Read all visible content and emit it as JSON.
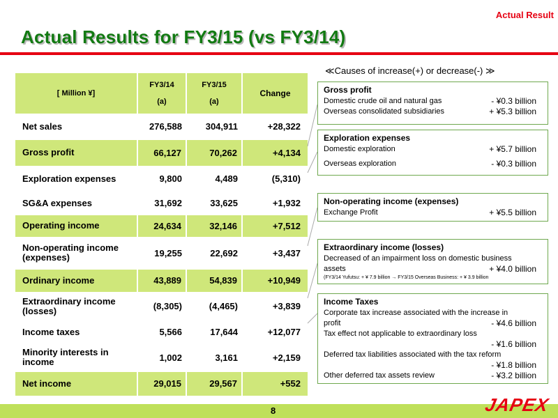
{
  "header": {
    "tag": "Actual Result",
    "title": "Actual Results for FY3/15 (vs FY3/14)"
  },
  "table": {
    "unit_label": "[ Million ¥]",
    "col1": "FY3/14",
    "col1_sub": "(a)",
    "col2": "FY3/15",
    "col2_sub": "(a)",
    "col3": "Change",
    "rows": [
      {
        "label": "Net sales",
        "fy14": "276,588",
        "fy15": "304,911",
        "change": "+28,322"
      },
      {
        "label": "Gross profit",
        "fy14": "66,127",
        "fy15": "70,262",
        "change": "+4,134"
      },
      {
        "label": "Exploration expenses",
        "fy14": "9,800",
        "fy15": "4,489",
        "change": "(5,310)"
      },
      {
        "label": "SG&A expenses",
        "fy14": "31,692",
        "fy15": "33,625",
        "change": "+1,932"
      },
      {
        "label": "Operating income",
        "fy14": "24,634",
        "fy15": "32,146",
        "change": "+7,512"
      },
      {
        "label": "Non-operating income (expenses)",
        "fy14": "19,255",
        "fy15": "22,692",
        "change": "+3,437"
      },
      {
        "label": "Ordinary income",
        "fy14": "43,889",
        "fy15": "54,839",
        "change": "+10,949"
      },
      {
        "label": "Extraordinary income (losses)",
        "fy14": "(8,305)",
        "fy15": "(4,465)",
        "change": "+3,839"
      },
      {
        "label": "Income taxes",
        "fy14": "5,566",
        "fy15": "17,644",
        "change": "+12,077"
      },
      {
        "label": "Minority interests in income",
        "fy14": "1,002",
        "fy15": "3,161",
        "change": "+2,159"
      },
      {
        "label": "Net income",
        "fy14": "29,015",
        "fy15": "29,567",
        "change": "+552"
      }
    ]
  },
  "causes": {
    "heading": "≪Causes of increase(+) or decrease(-) ≫",
    "gross_profit": {
      "title": "Gross profit",
      "items": [
        {
          "label": "Domestic crude oil and natural gas",
          "value": "- ¥0.3 billion"
        },
        {
          "label": "Overseas consolidated subsidiaries",
          "value": "+ ¥5.3 billion"
        }
      ]
    },
    "exploration": {
      "title": "Exploration expenses",
      "items": [
        {
          "label": "Domestic exploration",
          "value": "+ ¥5.7 billion"
        },
        {
          "label": "Overseas exploration",
          "value": "- ¥0.3 billion"
        }
      ]
    },
    "non_operating": {
      "title": "Non-operating income (expenses)",
      "items": [
        {
          "label": "Exchange Profit",
          "value": "+ ¥5.5 billion"
        }
      ]
    },
    "extraordinary": {
      "title": "Extraordinary income (losses)",
      "line1": "Decreased of an impairment loss on domestic business",
      "line2_label": "assets",
      "line2_value": "+ ¥4.0 billion",
      "note": "(FY3/14 Yufutsu: + ¥ 7.9 billion → FY3/15 Overseas Business: + ¥ 3.9 billion"
    },
    "income_taxes": {
      "title": "Income Taxes",
      "line1": "Corporate tax increase associated with the increase in",
      "line2_label": "profit",
      "line2_value": "- ¥4.6 billion",
      "line3": "Tax effect not applicable to extraordinary loss",
      "line3_value": "- ¥1.6 billion",
      "line4": "Deferred tax liabilities associated with the tax reform",
      "line4_value": "- ¥1.8 billion",
      "line5_label": "Other deferred tax assets review",
      "line5_value": "- ¥3.2 billion"
    }
  },
  "footer": {
    "page": "8",
    "logo": "JAPEX"
  },
  "colors": {
    "title_green": "#127a12",
    "accent_red": "#e60012",
    "table_green": "#cfe77a",
    "footer_green": "#bfe05a"
  }
}
